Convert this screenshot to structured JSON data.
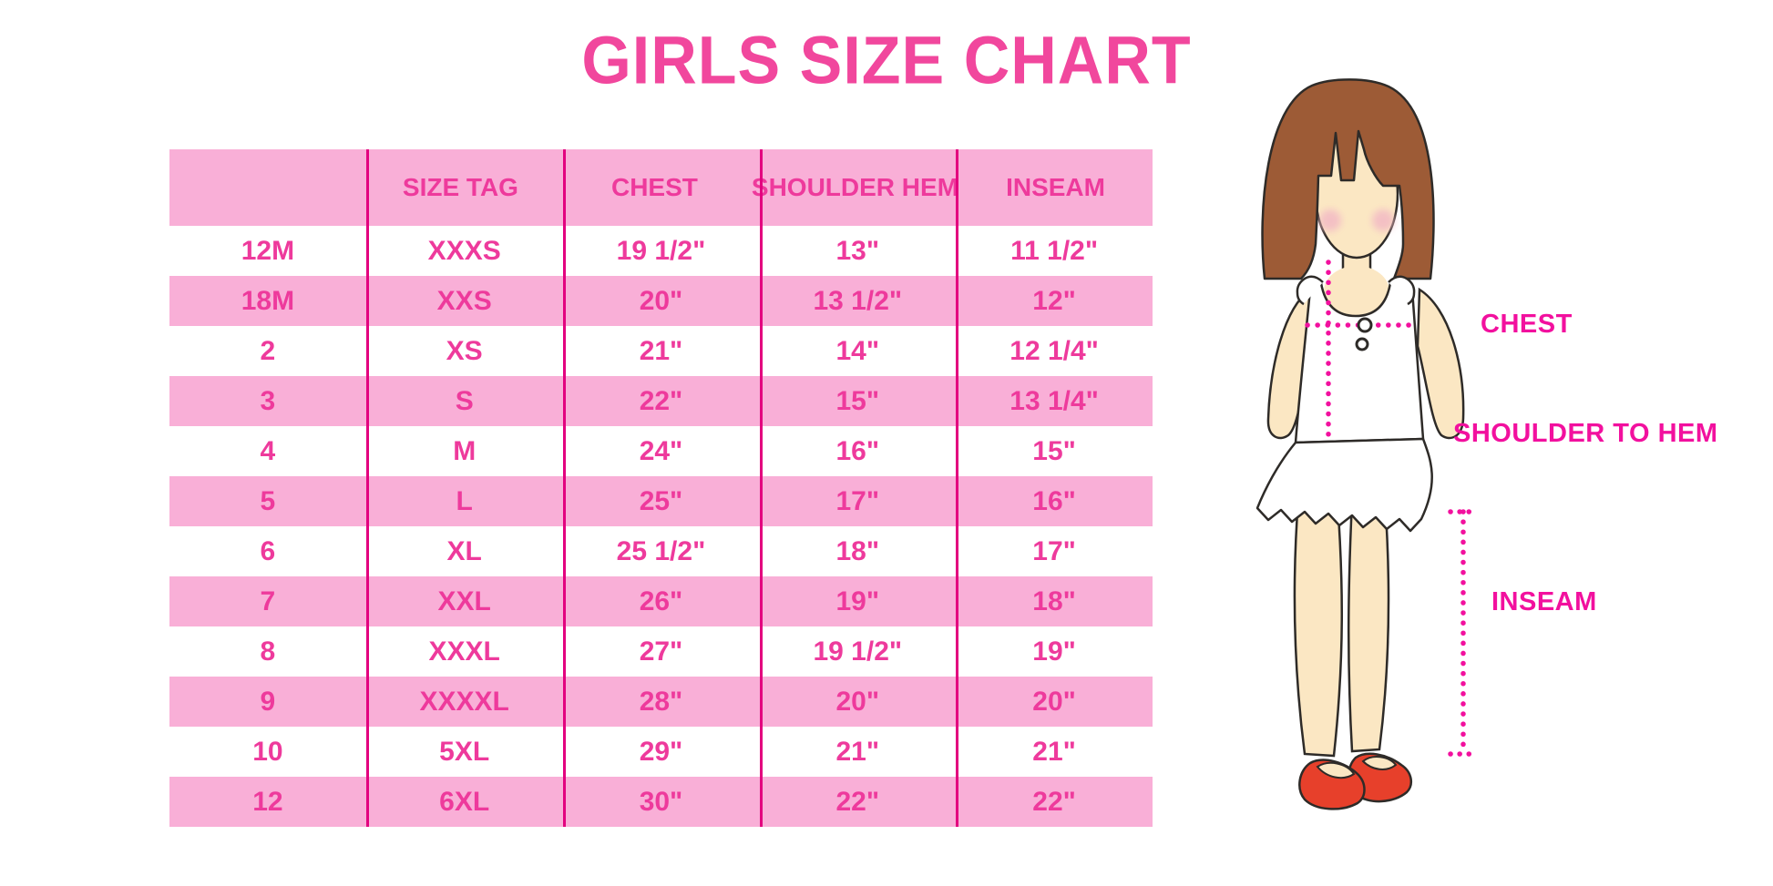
{
  "chart_data": {
    "type": "table",
    "title": "GIRLS SIZE CHART",
    "columns": [
      "",
      "SIZE TAG",
      "CHEST",
      "SHOULDER HEM",
      "INSEAM"
    ],
    "rows": [
      [
        "12M",
        "XXXS",
        "19 1/2\"",
        "13\"",
        "11 1/2\""
      ],
      [
        "18M",
        "XXS",
        "20\"",
        "13 1/2\"",
        "12\""
      ],
      [
        "2",
        "XS",
        "21\"",
        "14\"",
        "12 1/4\""
      ],
      [
        "3",
        "S",
        "22\"",
        "15\"",
        "13 1/4\""
      ],
      [
        "4",
        "M",
        "24\"",
        "16\"",
        "15\""
      ],
      [
        "5",
        "L",
        "25\"",
        "17\"",
        "16\""
      ],
      [
        "6",
        "XL",
        "25 1/2\"",
        "18\"",
        "17\""
      ],
      [
        "7",
        "XXL",
        "26\"",
        "19\"",
        "18\""
      ],
      [
        "8",
        "XXXL",
        "27\"",
        "19 1/2\"",
        "19\""
      ],
      [
        "9",
        "XXXXL",
        "28\"",
        "20\"",
        "20\""
      ],
      [
        "10",
        "5XL",
        "29\"",
        "21\"",
        "21\""
      ],
      [
        "12",
        "6XL",
        "30\"",
        "22\"",
        "22\""
      ]
    ],
    "legend_position": "none",
    "grid": "vertical-dividers-only",
    "row_striping": [
      "white",
      "pink"
    ]
  },
  "diagram": {
    "chest_label": "CHEST",
    "shoulder_to_hem_label": "SHOULDER TO HEM",
    "inseam_label": "INSEAM"
  },
  "colors": {
    "title_pink": "#F1479D",
    "row_pink": "#F9AFD7",
    "cell_text_pink": "#EE3A9C",
    "divider_magenta": "#E3007F",
    "label_magenta": "#F2109E",
    "dotted_line_magenta": "#F2109E",
    "hair_brown": "#9D5B36",
    "skin": "#FBE7C3",
    "blush": "#F3BCC5",
    "shoe_red": "#E7402B",
    "outline": "#2E2B28",
    "background": "#FFFFFF"
  }
}
